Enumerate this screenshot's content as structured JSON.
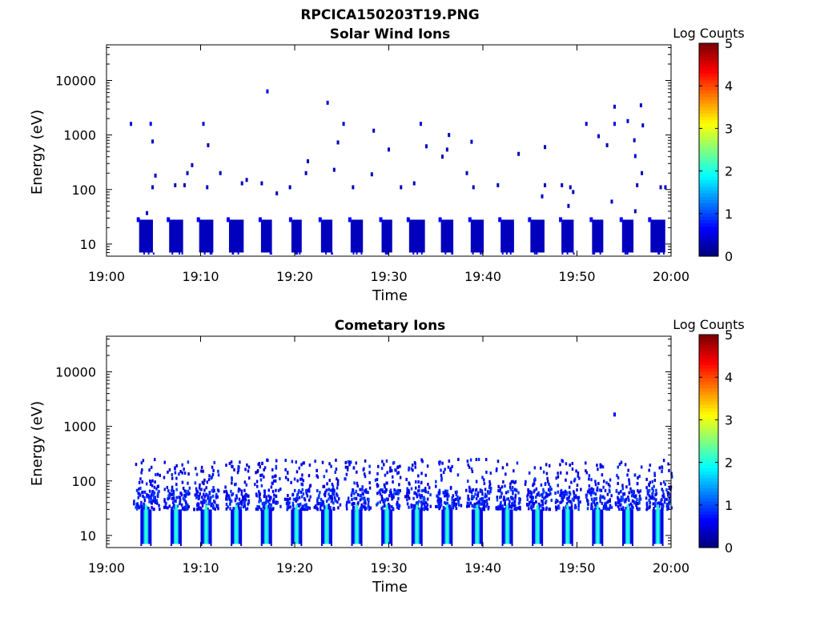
{
  "figure": {
    "title": "RPCICA150203T19.PNG"
  },
  "chart_data": [
    {
      "type": "heatmap",
      "title": "Solar Wind Ions",
      "xlabel": "Time",
      "ylabel": "Energy (eV)",
      "x_ticks": [
        "19:00",
        "19:10",
        "19:20",
        "19:30",
        "19:40",
        "19:50",
        "20:00"
      ],
      "xlim_minutes": [
        0,
        60
      ],
      "y_ticks": [
        "10",
        "100",
        "1000",
        "10000"
      ],
      "y_scale": "log",
      "ylim": [
        6,
        45000
      ],
      "colorbar": {
        "label": "Log Counts",
        "ticks": [
          "0",
          "1",
          "2",
          "3",
          "4",
          "5"
        ],
        "range": [
          0,
          5
        ]
      },
      "bursts_minutes": [
        4.2,
        7.4,
        10.6,
        13.8,
        17.0,
        20.2,
        23.4,
        26.6,
        29.8,
        33.0,
        36.2,
        39.4,
        42.6,
        45.8,
        49.0,
        52.2,
        55.4,
        58.6
      ],
      "burst_energy_range": [
        7,
        28
      ],
      "burst_level": 0.3,
      "sparse_points": [
        [
          2.6,
          1600,
          0.5
        ],
        [
          4.3,
          37,
          0.3
        ],
        [
          4.7,
          1600,
          0.5
        ],
        [
          4.9,
          760,
          0.4
        ],
        [
          4.9,
          110,
          0.3
        ],
        [
          5.2,
          180,
          0.3
        ],
        [
          7.3,
          120,
          0.3
        ],
        [
          8.3,
          120,
          0.3
        ],
        [
          8.6,
          200,
          0.3
        ],
        [
          9.1,
          280,
          0.3
        ],
        [
          10.3,
          1600,
          0.4
        ],
        [
          10.8,
          650,
          0.3
        ],
        [
          10.7,
          110,
          0.4
        ],
        [
          12.1,
          200,
          0.3
        ],
        [
          14.4,
          130,
          0.3
        ],
        [
          14.9,
          150,
          0.3
        ],
        [
          16.5,
          130,
          0.3
        ],
        [
          17.1,
          6300,
          0.5
        ],
        [
          18.1,
          85,
          0.3
        ],
        [
          19.5,
          110,
          0.3
        ],
        [
          21.2,
          200,
          0.3
        ],
        [
          21.4,
          330,
          0.3
        ],
        [
          23.5,
          3900,
          0.5
        ],
        [
          24.2,
          230,
          0.3
        ],
        [
          24.6,
          730,
          0.3
        ],
        [
          25.2,
          1600,
          0.4
        ],
        [
          26.2,
          110,
          0.3
        ],
        [
          28.2,
          190,
          0.3
        ],
        [
          28.4,
          1200,
          0.3
        ],
        [
          30.0,
          540,
          0.3
        ],
        [
          31.3,
          110,
          0.3
        ],
        [
          32.7,
          130,
          0.3
        ],
        [
          33.4,
          1600,
          0.4
        ],
        [
          34.0,
          620,
          0.3
        ],
        [
          35.7,
          400,
          0.3
        ],
        [
          36.2,
          540,
          0.3
        ],
        [
          36.4,
          1000,
          0.3
        ],
        [
          38.3,
          200,
          0.3
        ],
        [
          38.8,
          750,
          0.4
        ],
        [
          39.0,
          110,
          0.3
        ],
        [
          41.6,
          120,
          0.3
        ],
        [
          43.8,
          450,
          0.3
        ],
        [
          46.6,
          600,
          0.3
        ],
        [
          46.6,
          120,
          0.3
        ],
        [
          46.3,
          75,
          0.3
        ],
        [
          48.4,
          120,
          0.3
        ],
        [
          49.1,
          50,
          0.3
        ],
        [
          49.3,
          110,
          0.3
        ],
        [
          49.6,
          90,
          0.3
        ],
        [
          51.0,
          1600,
          0.5
        ],
        [
          52.3,
          950,
          0.4
        ],
        [
          53.2,
          650,
          0.3
        ],
        [
          53.7,
          60,
          0.3
        ],
        [
          54.0,
          1600,
          0.5
        ],
        [
          54.0,
          3300,
          0.4
        ],
        [
          55.4,
          1800,
          0.4
        ],
        [
          56.1,
          800,
          0.4
        ],
        [
          56.2,
          410,
          0.4
        ],
        [
          56.4,
          120,
          0.3
        ],
        [
          56.2,
          40,
          0.3
        ],
        [
          56.8,
          3500,
          0.4
        ],
        [
          56.9,
          200,
          0.3
        ],
        [
          57.0,
          1500,
          0.3
        ],
        [
          58.9,
          110,
          0.3
        ],
        [
          59.4,
          110,
          0.3
        ]
      ]
    },
    {
      "type": "heatmap",
      "title": "Cometary Ions",
      "xlabel": "Time",
      "ylabel": "Energy (eV)",
      "x_ticks": [
        "19:00",
        "19:10",
        "19:20",
        "19:30",
        "19:40",
        "19:50",
        "20:00"
      ],
      "xlim_minutes": [
        0,
        60
      ],
      "y_ticks": [
        "10",
        "100",
        "1000",
        "10000"
      ],
      "y_scale": "log",
      "ylim": [
        6,
        45000
      ],
      "colorbar": {
        "label": "Log Counts",
        "ticks": [
          "0",
          "1",
          "2",
          "3",
          "4",
          "5"
        ],
        "range": [
          0,
          5
        ]
      },
      "bursts_minutes": [
        4.2,
        7.4,
        10.6,
        13.8,
        17.0,
        20.2,
        23.4,
        26.6,
        29.8,
        33.0,
        36.2,
        39.4,
        42.6,
        45.8,
        49.0,
        52.2,
        55.4,
        58.6
      ],
      "burst_core_energy_range": [
        7,
        30
      ],
      "burst_core_level": 1.6,
      "burst_halo_energy_range": [
        30,
        250
      ],
      "burst_halo_level": 0.3,
      "sparse_points": [
        [
          54.0,
          1650,
          0.6
        ]
      ]
    }
  ]
}
